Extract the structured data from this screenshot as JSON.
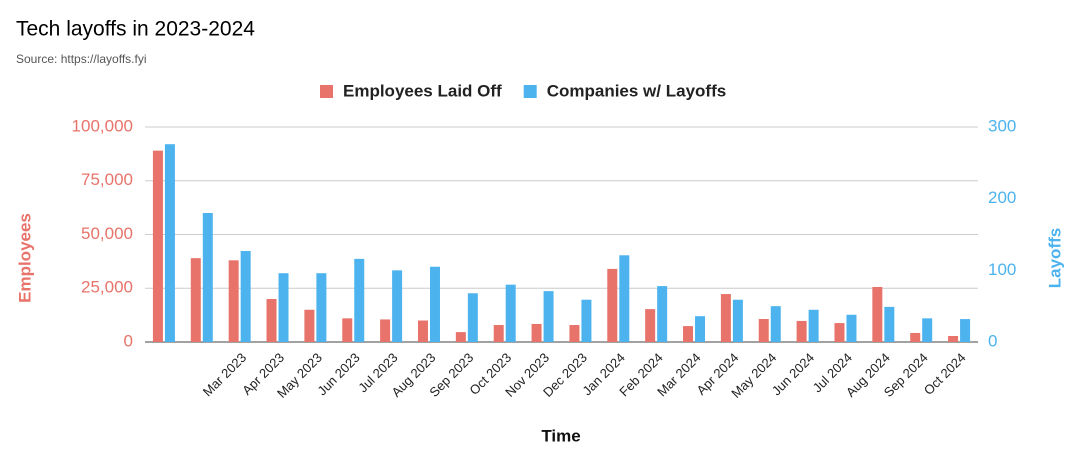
{
  "chart_data": {
    "type": "bar",
    "title": "Tech layoffs in 2023-2024",
    "subtitle": "Source: https://layoffs.fyi",
    "x_label": "Time",
    "y_label": "Employees",
    "y2_label": "Layoffs",
    "categories": [
      null,
      null,
      "Mar 2023",
      "Apr 2023",
      "May 2023",
      "Jun 2023",
      "Jul 2023",
      "Aug 2023",
      "Sep 2023",
      "Oct 2023",
      "Nov 2023",
      "Dec 2023",
      "Jan 2024",
      "Feb 2024",
      "Mar 2024",
      "Apr 2024",
      "May 2024",
      "Jun 2024",
      "Jul 2024",
      "Aug 2024",
      "Sep 2024",
      "Oct 2024"
    ],
    "series": [
      {
        "name": "Employees Laid Off",
        "color": "#e8736a",
        "values": [
          89000,
          39000,
          38000,
          20000,
          15000,
          11000,
          10500,
          10000,
          4600,
          7900,
          8400,
          7900,
          34000,
          15300,
          7400,
          22300,
          10700,
          9800,
          8800,
          25600,
          4200,
          2800
        ]
      },
      {
        "name": "Companies w/ Layoffs",
        "color": "#4db3ee",
        "axis": "y2",
        "values": [
          276,
          180,
          127,
          96,
          96,
          116,
          100,
          105,
          68,
          80,
          71,
          59,
          121,
          78,
          36,
          59,
          50,
          45,
          38,
          49,
          33,
          32
        ]
      }
    ],
    "ylim": [
      0,
      100000
    ],
    "yticks": [
      0,
      {
        "value": 25000,
        "label": "25,000"
      },
      {
        "value": 50000,
        "label": "50,000"
      },
      {
        "value": 75000,
        "label": "75,000"
      },
      {
        "value": 100000,
        "label": "100,000"
      }
    ],
    "y2lim": [
      0,
      300
    ],
    "y2ticks": [
      0,
      100,
      200,
      300
    ],
    "grid": true,
    "legend": "top"
  }
}
